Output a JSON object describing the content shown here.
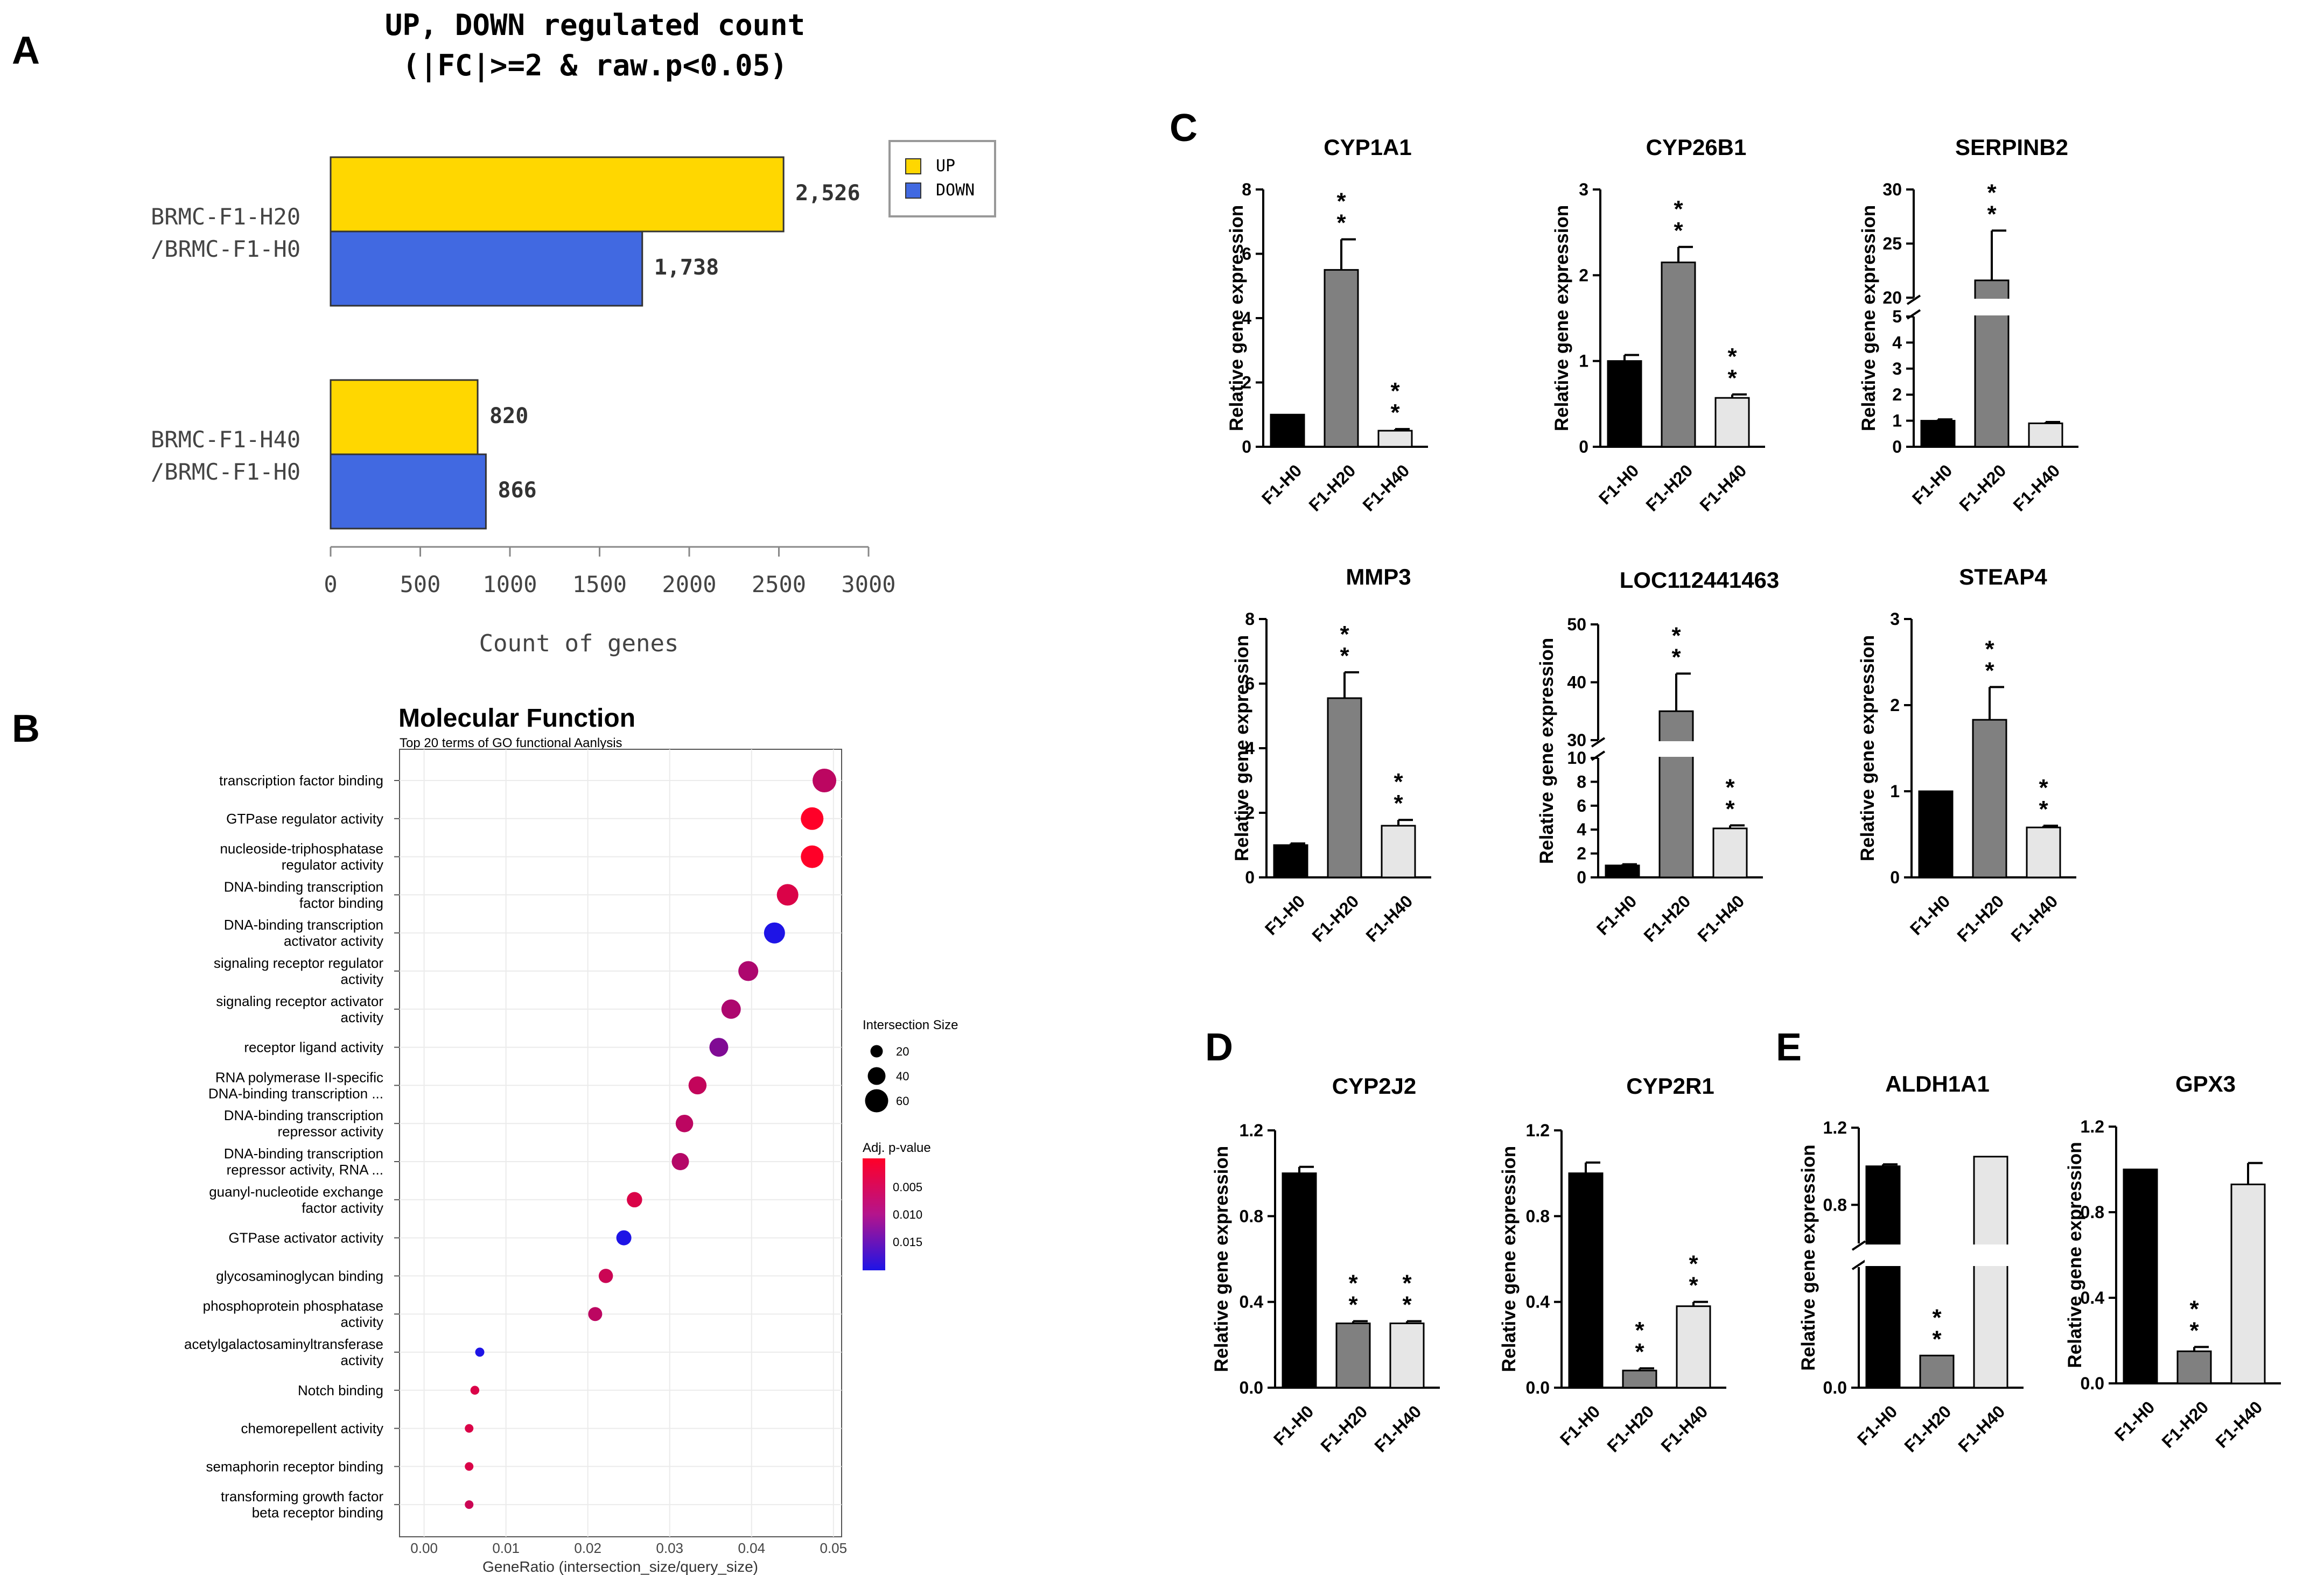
{
  "panel_labels": [
    "A",
    "B",
    "C",
    "D",
    "E"
  ],
  "colors": {
    "up": "#FFD700",
    "down": "#4169E1",
    "ctrl": "#000000",
    "h20": "#808080",
    "h40": "#E6E6E6"
  },
  "axis_title": "Relative gene expression",
  "sig_mark": "* *",
  "chart_data": [
    {
      "id": "A",
      "type": "bar",
      "orientation": "horizontal",
      "title": "UP, DOWN regulated count",
      "subtitle": "(|FC|>=2 & raw.p<0.05)",
      "xlabel": "Count of genes",
      "xlim": [
        0,
        3000
      ],
      "xticks": [
        0,
        500,
        1000,
        1500,
        2000,
        2500,
        3000
      ],
      "groups": [
        {
          "line1": "BRMC-F1-H20",
          "line2": "/BRMC-F1-H0",
          "up": 2526,
          "down": 1738,
          "up_label": "2,526",
          "down_label": "1,738"
        },
        {
          "line1": "BRMC-F1-H40",
          "line2": "/BRMC-F1-H0",
          "up": 820,
          "down": 866,
          "up_label": "820",
          "down_label": "866"
        }
      ],
      "legend": [
        {
          "name": "UP"
        },
        {
          "name": "DOWN"
        }
      ]
    },
    {
      "id": "B",
      "type": "scatter",
      "title": "Molecular Function",
      "subtitle": "Top 20 terms of GO functional Aanlysis",
      "xlabel": "GeneRatio (intersection_size/query_size)",
      "xlim": [
        -0.003,
        0.051
      ],
      "xticks": [
        "0.00",
        "0.01",
        "0.02",
        "0.03",
        "0.04",
        "0.05"
      ],
      "size_legend_title": "Intersection Size",
      "size_legend": [
        20,
        40,
        60
      ],
      "color_legend_title": "Adj. p-value",
      "color_legend_ticks": [
        "0.005",
        "0.010",
        "0.015"
      ],
      "terms": [
        {
          "label": [
            "transcription factor binding"
          ],
          "x": 0.0489,
          "size": 62,
          "p": 0.006
        },
        {
          "label": [
            "GTPase regulator activity"
          ],
          "x": 0.0474,
          "size": 58,
          "p": 0.0015
        },
        {
          "label": [
            "nucleoside-triphosphatase",
            "regulator activity"
          ],
          "x": 0.0474,
          "size": 58,
          "p": 0.0015
        },
        {
          "label": [
            "DNA-binding transcription",
            "factor binding"
          ],
          "x": 0.0444,
          "size": 54,
          "p": 0.004
        },
        {
          "label": [
            "DNA-binding transcription",
            "activator activity"
          ],
          "x": 0.0428,
          "size": 52,
          "p": 0.0165
        },
        {
          "label": [
            "signaling receptor regulator",
            "activity"
          ],
          "x": 0.0396,
          "size": 48,
          "p": 0.007
        },
        {
          "label": [
            "signaling receptor activator",
            "activity"
          ],
          "x": 0.0375,
          "size": 46,
          "p": 0.007
        },
        {
          "label": [
            "receptor ligand activity"
          ],
          "x": 0.036,
          "size": 44,
          "p": 0.01
        },
        {
          "label": [
            "RNA polymerase II-specific",
            "DNA-binding transcription ..."
          ],
          "x": 0.0334,
          "size": 41,
          "p": 0.0055
        },
        {
          "label": [
            "DNA-binding transcription",
            "repressor activity"
          ],
          "x": 0.0318,
          "size": 39,
          "p": 0.006
        },
        {
          "label": [
            "DNA-binding transcription",
            "repressor activity, RNA ..."
          ],
          "x": 0.0313,
          "size": 38,
          "p": 0.0065
        },
        {
          "label": [
            "guanyl-nucleotide exchange",
            "factor activity"
          ],
          "x": 0.0257,
          "size": 31,
          "p": 0.004
        },
        {
          "label": [
            "GTPase activator activity"
          ],
          "x": 0.0244,
          "size": 30,
          "p": 0.0165
        },
        {
          "label": [
            "glycosaminoglycan binding"
          ],
          "x": 0.0222,
          "size": 27,
          "p": 0.005
        },
        {
          "label": [
            "phosphoprotein phosphatase",
            "activity"
          ],
          "x": 0.0209,
          "size": 26,
          "p": 0.006
        },
        {
          "label": [
            "acetylgalactosaminyltransferase",
            "activity"
          ],
          "x": 0.0068,
          "size": 8,
          "p": 0.0165
        },
        {
          "label": [
            "Notch binding"
          ],
          "x": 0.0062,
          "size": 7,
          "p": 0.004
        },
        {
          "label": [
            "chemorepellent activity"
          ],
          "x": 0.0055,
          "size": 6,
          "p": 0.004
        },
        {
          "label": [
            "semaphorin receptor binding"
          ],
          "x": 0.0055,
          "size": 6,
          "p": 0.004
        },
        {
          "label": [
            "transforming growth factor",
            "beta receptor binding"
          ],
          "x": 0.0055,
          "size": 6,
          "p": 0.005
        }
      ]
    },
    {
      "id": "C1",
      "type": "bar",
      "title": "CYP1A1",
      "ylabel": "Relative gene expression",
      "categories": [
        "F1-H0",
        "F1-H20",
        "F1-H40"
      ],
      "values": [
        1.0,
        5.5,
        0.5
      ],
      "errors": [
        0.0,
        0.95,
        0.05
      ],
      "sig": [
        false,
        true,
        true
      ],
      "ylim": [
        0,
        8
      ],
      "yticks": [
        "0",
        "2",
        "4",
        "6",
        "8"
      ]
    },
    {
      "id": "C2",
      "type": "bar",
      "title": "CYP26B1",
      "ylabel": "Relative gene expression",
      "categories": [
        "F1-H0",
        "F1-H20",
        "F1-H40"
      ],
      "values": [
        1.0,
        2.15,
        0.57
      ],
      "errors": [
        0.07,
        0.18,
        0.04
      ],
      "sig": [
        false,
        true,
        true
      ],
      "ylim": [
        0,
        3
      ],
      "yticks": [
        "0",
        "1",
        "2",
        "3"
      ]
    },
    {
      "id": "C3",
      "type": "bar",
      "title": "SERPINB2",
      "ylabel": "Relative gene expression",
      "categories": [
        "F1-H0",
        "F1-H20",
        "F1-H40"
      ],
      "values": [
        1.0,
        21.6,
        0.9
      ],
      "errors": [
        0.05,
        4.6,
        0.05
      ],
      "sig": [
        false,
        true,
        false
      ],
      "broken_axis": {
        "lower": [
          0,
          5
        ],
        "lower_ticks": [
          "0",
          "1",
          "2",
          "3",
          "4",
          "5"
        ],
        "upper": [
          20,
          30
        ],
        "upper_ticks": [
          "20",
          "25",
          "30"
        ]
      }
    },
    {
      "id": "C4",
      "type": "bar",
      "title": "MMP3",
      "ylabel": "Relative gene expression",
      "categories": [
        "F1-H0",
        "F1-H20",
        "F1-H40"
      ],
      "values": [
        1.0,
        5.55,
        1.6
      ],
      "errors": [
        0.05,
        0.8,
        0.18
      ],
      "sig": [
        false,
        true,
        true
      ],
      "ylim": [
        0,
        8
      ],
      "yticks": [
        "0",
        "2",
        "4",
        "6",
        "8"
      ]
    },
    {
      "id": "C5",
      "type": "bar",
      "title": "LOC112441463",
      "ylabel": "Relative gene expression",
      "categories": [
        "F1-H0",
        "F1-H20",
        "F1-H40"
      ],
      "values": [
        1.0,
        35.0,
        4.1
      ],
      "errors": [
        0.1,
        6.5,
        0.25
      ],
      "sig": [
        false,
        true,
        true
      ],
      "broken_axis": {
        "lower": [
          0,
          10
        ],
        "lower_ticks": [
          "0",
          "2",
          "4",
          "6",
          "8",
          "10"
        ],
        "upper": [
          30,
          50
        ],
        "upper_ticks": [
          "30",
          "40",
          "50"
        ]
      }
    },
    {
      "id": "C6",
      "type": "bar",
      "title": "STEAP4",
      "ylabel": "Relative gene expression",
      "categories": [
        "F1-H0",
        "F1-H20",
        "F1-H40"
      ],
      "values": [
        1.0,
        1.83,
        0.58
      ],
      "errors": [
        0.0,
        0.38,
        0.02
      ],
      "sig": [
        false,
        true,
        true
      ],
      "ylim": [
        0,
        3
      ],
      "yticks": [
        "0",
        "1",
        "2",
        "3"
      ]
    },
    {
      "id": "D1",
      "type": "bar",
      "title": "CYP2J2",
      "ylabel": "Relative gene expression",
      "categories": [
        "F1-H0",
        "F1-H20",
        "F1-H40"
      ],
      "values": [
        1.0,
        0.3,
        0.3
      ],
      "errors": [
        0.03,
        0.01,
        0.01
      ],
      "sig": [
        false,
        true,
        true
      ],
      "ylim": [
        0,
        1.2
      ],
      "yticks": [
        "0.0",
        "0.4",
        "0.8",
        "1.2"
      ]
    },
    {
      "id": "D2",
      "type": "bar",
      "title": "CYP2R1",
      "ylabel": "Relative gene expression",
      "categories": [
        "F1-H0",
        "F1-H20",
        "F1-H40"
      ],
      "values": [
        1.0,
        0.08,
        0.38
      ],
      "errors": [
        0.05,
        0.01,
        0.02
      ],
      "sig": [
        false,
        true,
        true
      ],
      "ylim": [
        0,
        1.2
      ],
      "yticks": [
        "0.0",
        "0.4",
        "0.8",
        "1.2"
      ]
    },
    {
      "id": "E1",
      "type": "bar",
      "title": "ALDH1A1",
      "ylabel": "Relative gene expression",
      "categories": [
        "F1-H0",
        "F1-H20",
        "F1-H40"
      ],
      "values": [
        1.0,
        0.04,
        1.05
      ],
      "errors": [
        0.01,
        0.0,
        0.0
      ],
      "sig": [
        false,
        true,
        false
      ],
      "broken_axis": {
        "lower": [
          0,
          0.15
        ],
        "lower_ticks": [
          "0.0"
        ],
        "upper": [
          0.6,
          1.2
        ],
        "upper_ticks": [
          "0.8",
          "1.2"
        ]
      }
    },
    {
      "id": "E2",
      "type": "bar",
      "title": "GPX3",
      "ylabel": "Relative gene expression",
      "categories": [
        "F1-H0",
        "F1-H20",
        "F1-H40"
      ],
      "values": [
        1.0,
        0.15,
        0.93
      ],
      "errors": [
        0.0,
        0.02,
        0.1
      ],
      "sig": [
        false,
        true,
        false
      ],
      "ylim": [
        0,
        1.2
      ],
      "yticks": [
        "0.0",
        "0.4",
        "0.8",
        "1.2"
      ]
    }
  ]
}
